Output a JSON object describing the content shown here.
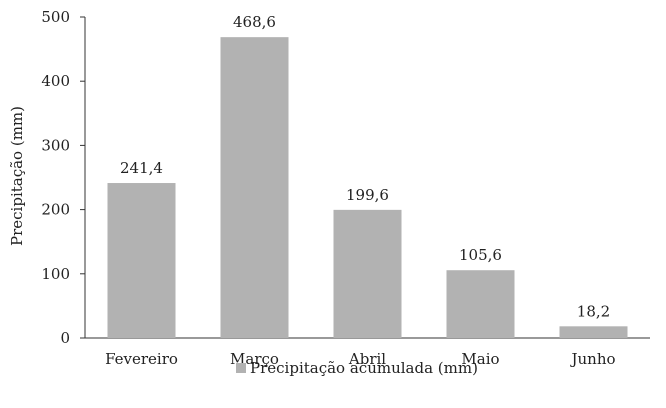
{
  "chart_data": {
    "type": "bar",
    "categories": [
      "Fevereiro",
      "Março",
      "Abril",
      "Maio",
      "Junho"
    ],
    "series": [
      {
        "name": "Precipitação acumulada (mm)",
        "values": [
          241.4,
          468.6,
          199.6,
          105.6,
          18.2
        ]
      }
    ],
    "data_labels": [
      "241,4",
      "468,6",
      "199,6",
      "105,6",
      "18,2"
    ],
    "ylabel": "Precipitação (mm)",
    "xlabel": "",
    "ylim": [
      0,
      500
    ],
    "yticks": [
      0,
      100,
      200,
      300,
      400,
      500
    ],
    "grid": false,
    "legend": "bottom",
    "bar_color": "#b2b2b2"
  }
}
